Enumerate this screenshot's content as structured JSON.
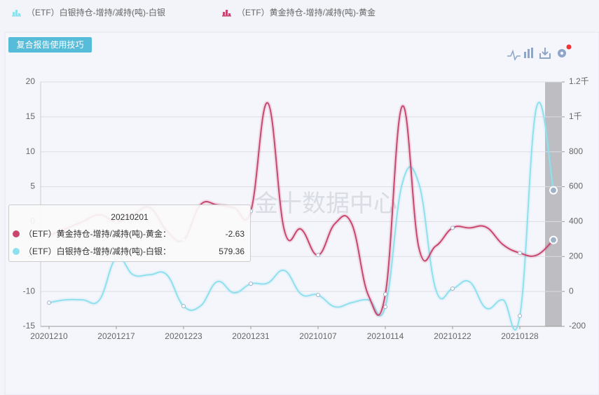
{
  "chart_data": {
    "type": "line",
    "button": "复合报告使用技巧",
    "watermark": "金十数据中心",
    "categories": [
      "20201210",
      null,
      null,
      null,
      "20201217",
      null,
      null,
      null,
      "20201223",
      null,
      null,
      null,
      "20201231",
      null,
      null,
      null,
      "20210107",
      null,
      null,
      null,
      "20210114",
      null,
      null,
      null,
      "20210122",
      null,
      null,
      null,
      "20210128",
      null,
      null
    ],
    "series": [
      {
        "name": "（ETF）白银持仓-增持/减持(吨)-白银",
        "color": "#8fe0ee",
        "axis": "y2",
        "values": [
          -64,
          -48,
          -48,
          -48,
          192,
          96,
          96,
          96,
          -84,
          -84,
          56,
          -8,
          44,
          48,
          120,
          -16,
          -20,
          -88,
          -64,
          -48,
          -88,
          616,
          616,
          12,
          16,
          56,
          -96,
          -48,
          -140,
          1058,
          579.36
        ]
      },
      {
        "name": "（ETF）黄金持仓-增持/减持(吨)-黄金",
        "color": "#c9466e",
        "values": [
          -2,
          -1,
          0,
          1,
          0,
          1,
          2,
          -1.3,
          -2.6,
          2.4,
          2.4,
          2,
          1.5,
          17,
          -1.3,
          -1.1,
          -4.8,
          -0.3,
          -0.3,
          -10.6,
          -10.4,
          16.5,
          -3.8,
          -3.5,
          -0.9,
          -0.9,
          -0.8,
          -3.3,
          -4.5,
          -4.8,
          -2.63
        ]
      }
    ],
    "ylim": [
      -15,
      20
    ],
    "yticks": [
      -15,
      -10,
      -5,
      0,
      5,
      10,
      15,
      20
    ],
    "y2lim": [
      -200,
      1200
    ],
    "y2ticks": [
      -200,
      0,
      200,
      400,
      600,
      800,
      {
        "value": 1000,
        "label": "1千"
      },
      {
        "value": 1200,
        "label": "1.2千"
      }
    ],
    "grid": true,
    "tooltip": {
      "title": "20210201",
      "labels": [
        "（ETF）黄金持仓-增持/减持(吨)-黄金：",
        "（ETF）白银持仓-增持/减持(吨)-白银："
      ]
    }
  }
}
